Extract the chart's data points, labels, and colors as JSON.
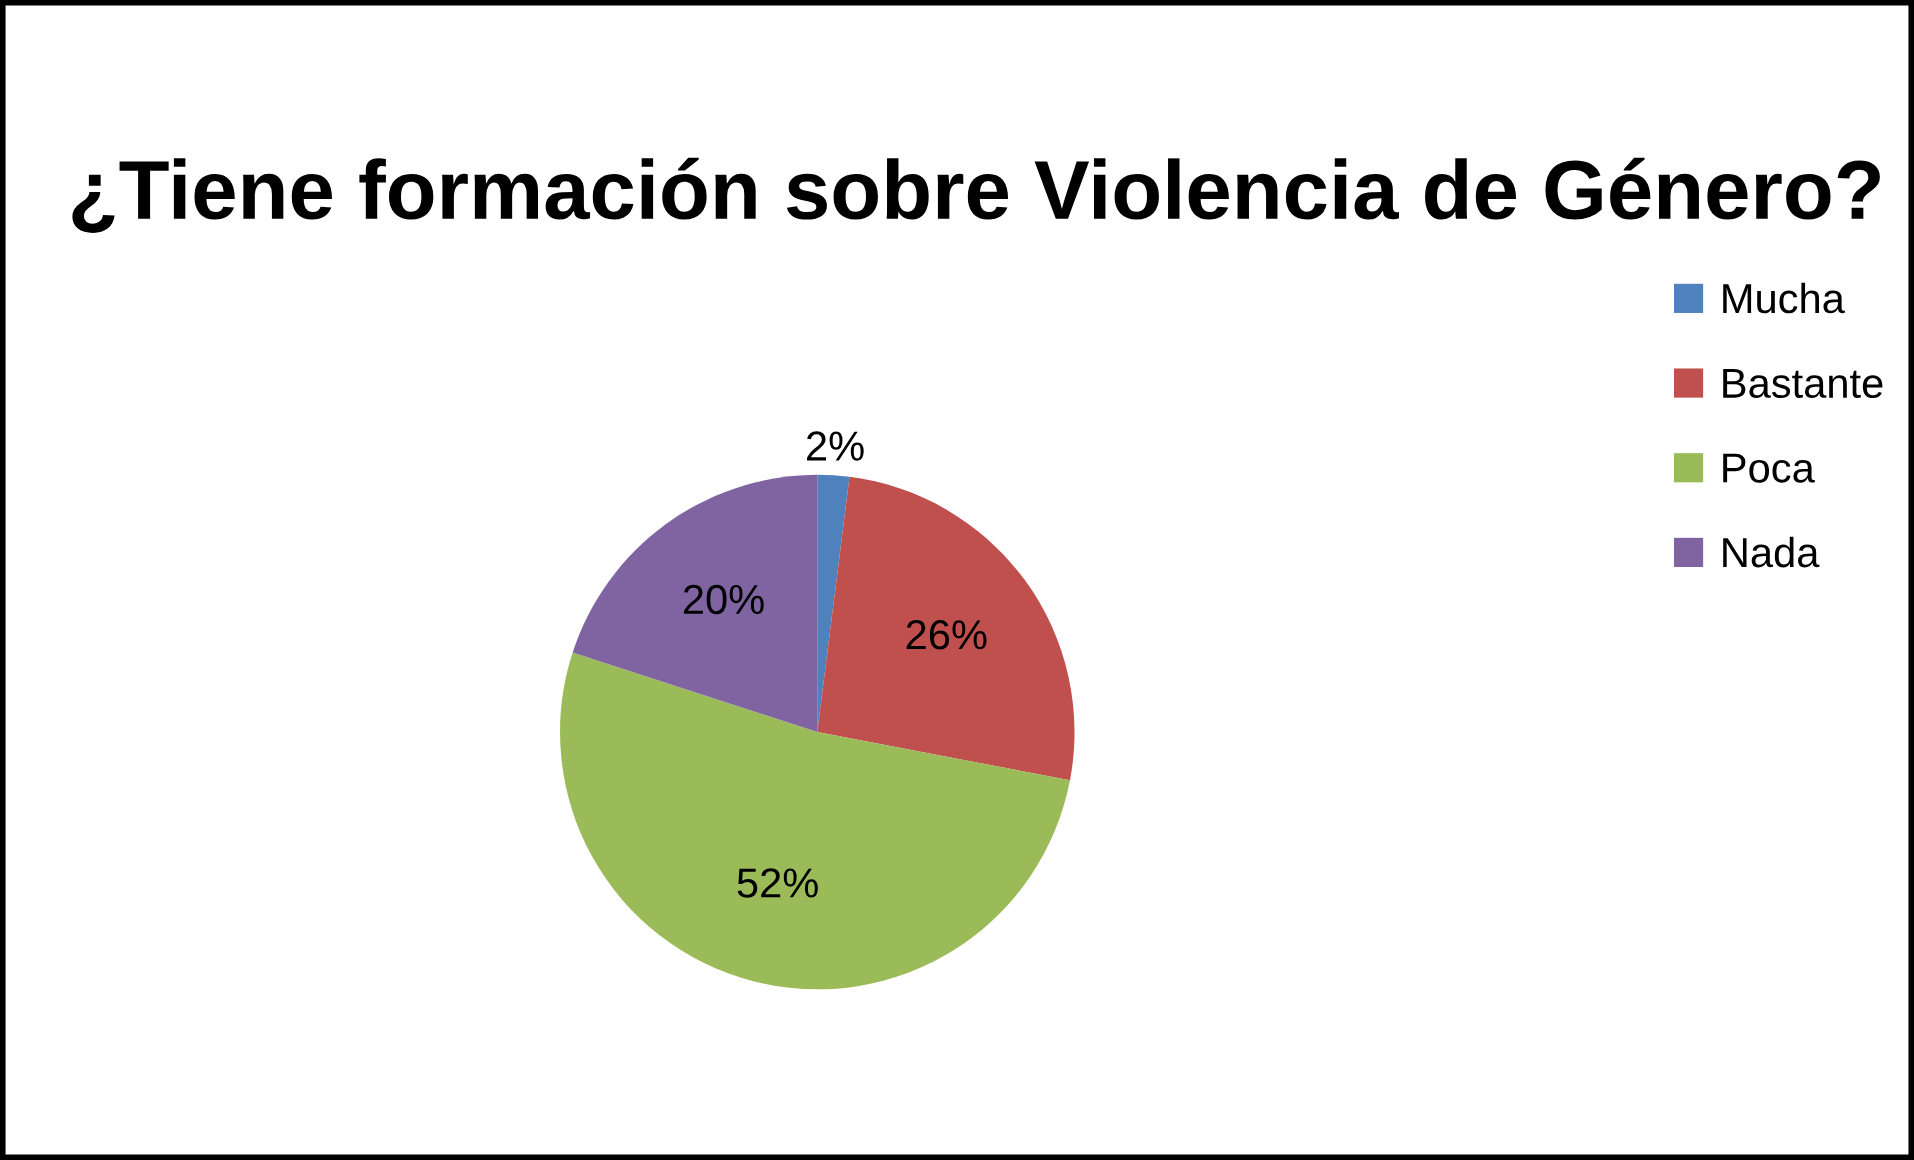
{
  "chart_data": {
    "type": "pie",
    "title": "¿Tiene formación sobre Violencia de Género?",
    "categories": [
      "Mucha",
      "Bastante",
      "Poca",
      "Nada"
    ],
    "values": [
      2,
      26,
      52,
      20
    ],
    "value_labels": [
      "2%",
      "26%",
      "52%",
      "20%"
    ],
    "colors": [
      "#4f81bd",
      "#c0504d",
      "#9bbb59",
      "#8064a2"
    ],
    "legend": "right"
  }
}
